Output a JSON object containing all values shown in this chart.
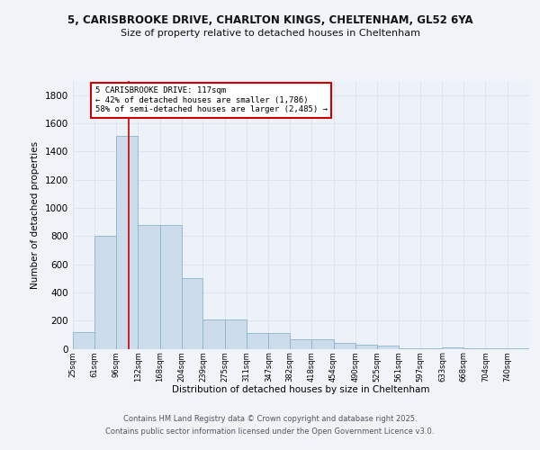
{
  "title_line1": "5, CARISBROOKE DRIVE, CHARLTON KINGS, CHELTENHAM, GL52 6YA",
  "title_line2": "Size of property relative to detached houses in Cheltenham",
  "xlabel": "Distribution of detached houses by size in Cheltenham",
  "ylabel": "Number of detached properties",
  "bin_labels": [
    "25sqm",
    "61sqm",
    "96sqm",
    "132sqm",
    "168sqm",
    "204sqm",
    "239sqm",
    "275sqm",
    "311sqm",
    "347sqm",
    "382sqm",
    "418sqm",
    "454sqm",
    "490sqm",
    "525sqm",
    "561sqm",
    "597sqm",
    "633sqm",
    "668sqm",
    "704sqm",
    "740sqm"
  ],
  "bin_edges": [
    25,
    61,
    96,
    132,
    168,
    204,
    239,
    275,
    311,
    347,
    382,
    418,
    454,
    490,
    525,
    561,
    597,
    633,
    668,
    704,
    740
  ],
  "bar_heights": [
    120,
    800,
    1510,
    880,
    880,
    500,
    210,
    210,
    110,
    110,
    65,
    65,
    40,
    30,
    20,
    5,
    2,
    10,
    2,
    2,
    1
  ],
  "bar_color": "#ccdcea",
  "bar_edge_color": "#89b4cc",
  "grid_color": "#dde6f0",
  "bg_color": "#edf2f8",
  "red_line_x": 117,
  "annotation_text": "5 CARISBROOKE DRIVE: 117sqm\n← 42% of detached houses are smaller (1,786)\n58% of semi-detached houses are larger (2,485) →",
  "annotation_box_color": "#ffffff",
  "annotation_box_edge": "#cc0000",
  "red_line_color": "#cc0000",
  "ylim": [
    0,
    1900
  ],
  "yticks": [
    0,
    200,
    400,
    600,
    800,
    1000,
    1200,
    1400,
    1600,
    1800
  ],
  "footer_line1": "Contains HM Land Registry data © Crown copyright and database right 2025.",
  "footer_line2": "Contains public sector information licensed under the Open Government Licence v3.0."
}
